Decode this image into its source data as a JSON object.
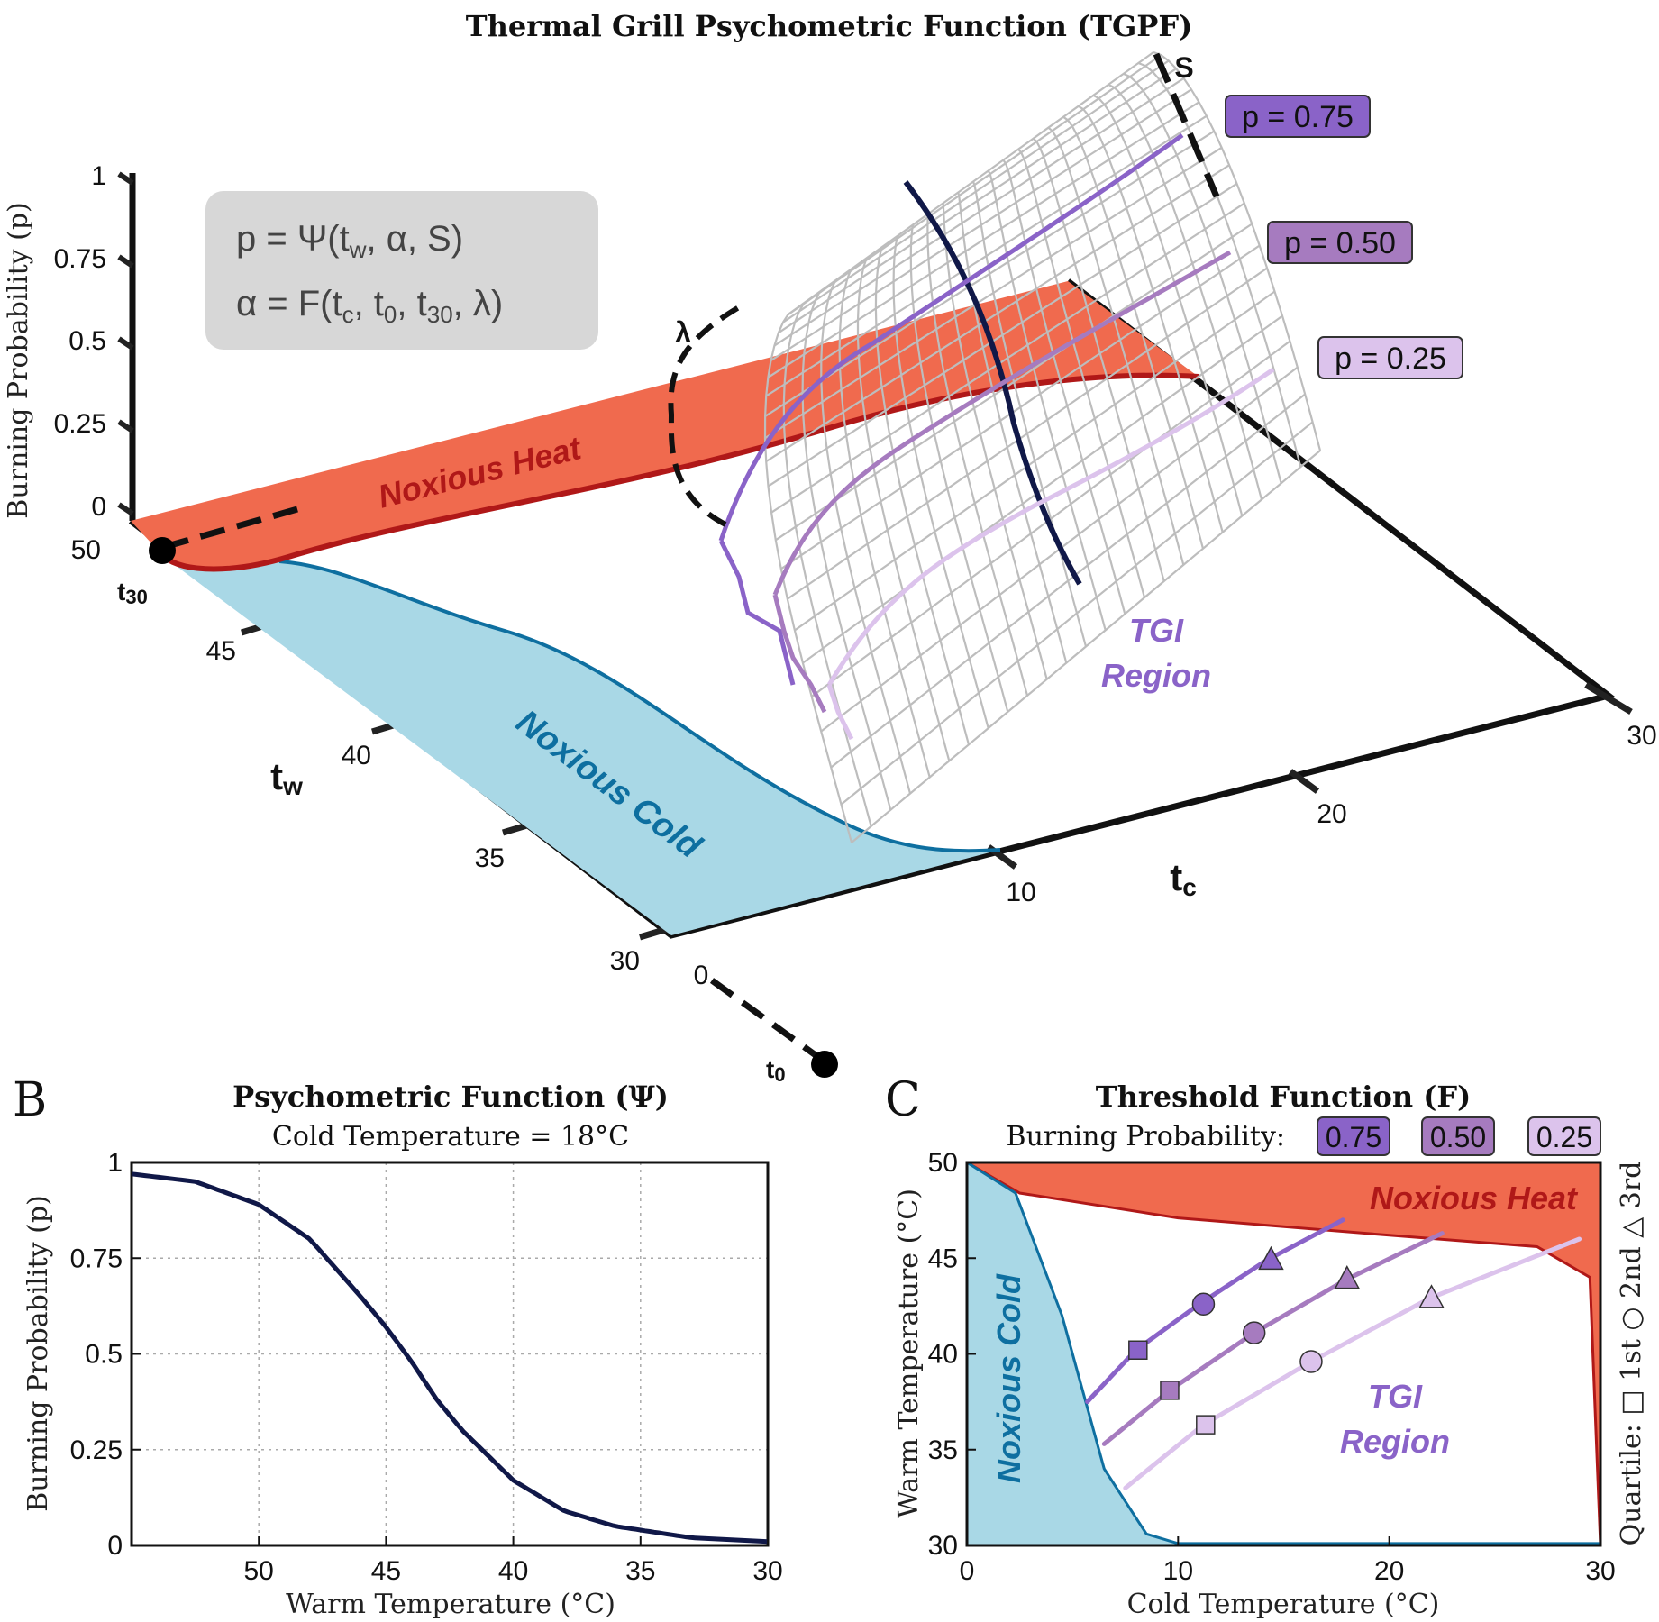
{
  "figure_title": "Thermal Grill Psychometric Function (TGPF)",
  "colors": {
    "noxious_heat_fill": "#f06a4e",
    "noxious_heat_edge": "#b01818",
    "noxious_cold_fill": "#a9d8e6",
    "noxious_cold_edge": "#0e6fa0",
    "p075": "#8a63c8",
    "p050": "#a67bbf",
    "p025": "#dcc3ec",
    "psychometric_curve": "#101848",
    "surface_grid": "#bdbdbd",
    "tgi_label": "#8a63c8",
    "formula_box": "#d7d7d7"
  },
  "panel_a": {
    "formula_line1": "p = Ψ(tw, α, S)",
    "formula_line2": "α = F(tc, t0, t30, λ)",
    "z_axis_label": "Burning Probability (p)",
    "z_ticks": [
      "0",
      "0.25",
      "0.5",
      "0.75",
      "1"
    ],
    "tw_label": "tw",
    "tw_ticks": [
      "50",
      "45",
      "40",
      "35",
      "30"
    ],
    "tc_label": "tc",
    "tc_ticks": [
      "0",
      "10",
      "20",
      "30"
    ],
    "t30_label": "t30",
    "t0_label": "t0",
    "lambda_label": "λ",
    "s_label": "S",
    "noxious_heat_label": "Noxious Heat",
    "noxious_cold_label": "Noxious Cold",
    "tgi_label_line1": "TGI",
    "tgi_label_line2": "Region",
    "legend": [
      {
        "label": "p = 0.75",
        "color": "#8a63c8"
      },
      {
        "label": "p = 0.50",
        "color": "#a67bbf"
      },
      {
        "label": "p = 0.25",
        "color": "#dcc3ec"
      }
    ]
  },
  "panel_b": {
    "letter": "B",
    "title": "Psychometric Function (Ψ)",
    "subtitle": "Cold Temperature = 18°C",
    "xlabel": "Warm Temperature (°C)",
    "ylabel": "Burning Probability (p)",
    "x_ticks": [
      "50",
      "45",
      "40",
      "35",
      "30"
    ],
    "y_ticks": [
      "0",
      "0.25",
      "0.5",
      "0.75",
      "1"
    ]
  },
  "panel_c": {
    "letter": "C",
    "title": "Threshold Function (F)",
    "legend_prefix": "Burning Probability:",
    "legend": [
      "0.75",
      "0.50",
      "0.25"
    ],
    "xlabel": "Cold Temperature (°C)",
    "ylabel": "Warm Temperature (°C)",
    "x_ticks": [
      "0",
      "10",
      "20",
      "30"
    ],
    "y_ticks": [
      "30",
      "35",
      "40",
      "45",
      "50"
    ],
    "quartile_label": "Quartile: □ 1st ○ 2nd △ 3rd",
    "noxious_heat_label": "Noxious Heat",
    "noxious_cold_label": "Noxious Cold",
    "tgi_label_line1": "TGI",
    "tgi_label_line2": "Region"
  },
  "chart_data": [
    {
      "type": "line",
      "panel": "B",
      "title": "Psychometric Function (Ψ)",
      "subtitle": "Cold Temperature = 18°C",
      "xlabel": "Warm Temperature (°C)",
      "ylabel": "Burning Probability (p)",
      "x_reversed": true,
      "xlim": [
        55,
        30
      ],
      "ylim": [
        0,
        1
      ],
      "grid": true,
      "series": [
        {
          "x": [
            55,
            52.5,
            50,
            48,
            46,
            45,
            44,
            43,
            42,
            40,
            38,
            36,
            35,
            33,
            30
          ],
          "values": [
            0.97,
            0.95,
            0.89,
            0.8,
            0.65,
            0.57,
            0.48,
            0.38,
            0.3,
            0.17,
            0.09,
            0.05,
            0.04,
            0.02,
            0.01
          ]
        }
      ]
    },
    {
      "type": "line",
      "panel": "C",
      "title": "Threshold Function (F)",
      "xlabel": "Cold Temperature (°C)",
      "ylabel": "Warm Temperature (°C)",
      "xlim": [
        0,
        30
      ],
      "ylim": [
        30,
        50
      ],
      "series": [
        {
          "name": "0.75",
          "x": [
            5.7,
            8,
            11,
            14.2,
            17.8
          ],
          "values": [
            37.5,
            40.2,
            42.6,
            44.9,
            47
          ]
        },
        {
          "name": "0.50",
          "x": [
            6.5,
            9.6,
            13.6,
            18,
            22.5
          ],
          "values": [
            35.3,
            38.1,
            41.1,
            43.9,
            46.3
          ]
        },
        {
          "name": "0.25",
          "x": [
            7.5,
            11.2,
            16.3,
            21.9,
            29
          ],
          "values": [
            33,
            36.3,
            39.6,
            42.9,
            46
          ]
        }
      ],
      "quartile_markers": [
        {
          "series": "0.75",
          "quartile": "1st",
          "shape": "square",
          "x": 8.1,
          "y": 40.2
        },
        {
          "series": "0.75",
          "quartile": "2nd",
          "shape": "circle",
          "x": 11.2,
          "y": 42.6
        },
        {
          "series": "0.75",
          "quartile": "3rd",
          "shape": "triangle",
          "x": 14.4,
          "y": 44.9
        },
        {
          "series": "0.50",
          "quartile": "1st",
          "shape": "square",
          "x": 9.6,
          "y": 38.1
        },
        {
          "series": "0.50",
          "quartile": "2nd",
          "shape": "circle",
          "x": 13.6,
          "y": 41.1
        },
        {
          "series": "0.50",
          "quartile": "3rd",
          "shape": "triangle",
          "x": 18,
          "y": 43.9
        },
        {
          "series": "0.25",
          "quartile": "1st",
          "shape": "square",
          "x": 11.3,
          "y": 36.3
        },
        {
          "series": "0.25",
          "quartile": "2nd",
          "shape": "circle",
          "x": 16.3,
          "y": 39.6
        },
        {
          "series": "0.25",
          "quartile": "3rd",
          "shape": "triangle",
          "x": 22,
          "y": 42.9
        }
      ],
      "noxious_heat_boundary": {
        "x": [
          0,
          2.5,
          10,
          20,
          27,
          29.5,
          30
        ],
        "values": [
          50,
          48.4,
          47.1,
          46.2,
          45.6,
          44,
          30
        ]
      },
      "noxious_cold_boundary": {
        "x": [
          0,
          2.3,
          4.5,
          6.5,
          8.5,
          10,
          30
        ],
        "values": [
          50,
          48.4,
          42,
          34,
          30.6,
          30.1,
          30.1
        ]
      }
    }
  ]
}
